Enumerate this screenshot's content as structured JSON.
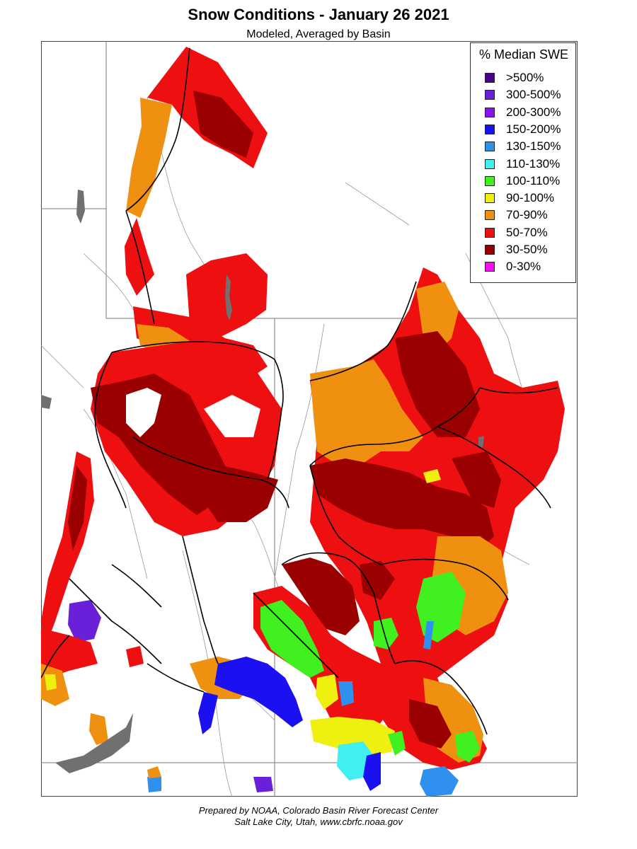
{
  "title": "Snow Conditions - January 26 2021",
  "subtitle": "Modeled, Averaged by Basin",
  "legend": {
    "title": "% Median SWE",
    "items": [
      {
        "label": ">500%",
        "color": "#4b0090"
      },
      {
        "label": "300-500%",
        "color": "#6a1fd8"
      },
      {
        "label": "200-300%",
        "color": "#8c10f0"
      },
      {
        "label": "150-200%",
        "color": "#1a10f0"
      },
      {
        "label": "130-150%",
        "color": "#3090f0"
      },
      {
        "label": "110-130%",
        "color": "#40f0f0"
      },
      {
        "label": "100-110%",
        "color": "#40f020"
      },
      {
        "label": "90-100%",
        "color": "#f0f010"
      },
      {
        "label": "70-90%",
        "color": "#f09010"
      },
      {
        "label": "50-70%",
        "color": "#ee1010"
      },
      {
        "label": "30-50%",
        "color": "#9a0000"
      },
      {
        "label": "0-30%",
        "color": "#f010f0"
      }
    ]
  },
  "footer": {
    "line1": "Prepared by NOAA, Colorado Basin River Forecast Center",
    "line2": "Salt Lake City, Utah, www.cbrfc.noaa.gov"
  }
}
